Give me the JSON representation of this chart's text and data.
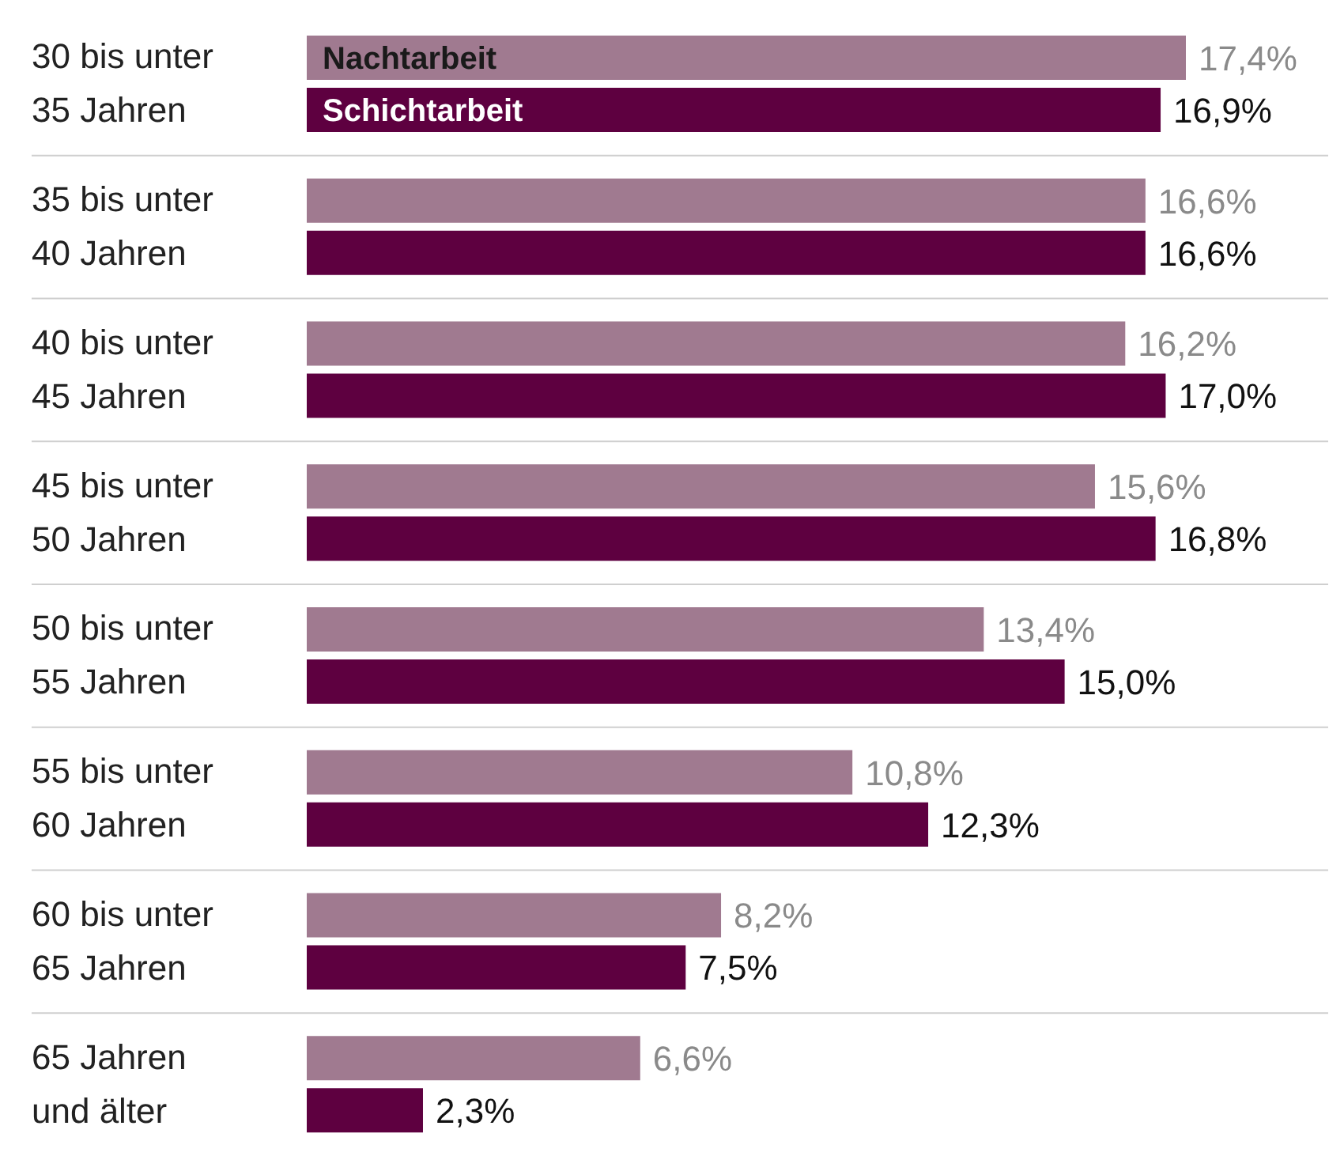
{
  "chart_data": {
    "type": "bar",
    "orientation": "horizontal",
    "legend": false,
    "data_labels": true,
    "categories": [
      "30 bis unter\n35 Jahren",
      "35 bis unter\n40 Jahren",
      "40 bis unter\n45 Jahren",
      "45 bis unter\n50 Jahren",
      "50 bis unter\n55 Jahren",
      "55 bis unter\n60 Jahren",
      "60 bis unter\n65 Jahren",
      "65 Jahren\nund älter"
    ],
    "series": [
      {
        "name": "Nachtarbeit",
        "color": "#a07a90",
        "values": [
          17.4,
          16.6,
          16.2,
          15.6,
          13.4,
          10.8,
          8.2,
          6.6
        ],
        "value_labels": [
          "17,4%",
          "16,6%",
          "16,2%",
          "15,6%",
          "13,4%",
          "10,8%",
          "8,2%",
          "6,6%"
        ]
      },
      {
        "name": "Schichtarbeit",
        "color": "#5e0040",
        "values": [
          16.9,
          16.6,
          17.0,
          16.8,
          15.0,
          12.3,
          7.5,
          2.3
        ],
        "value_labels": [
          "16,9%",
          "16,6%",
          "17,0%",
          "16,8%",
          "15,0%",
          "12,3%",
          "7,5%",
          "2,3%"
        ]
      }
    ]
  }
}
